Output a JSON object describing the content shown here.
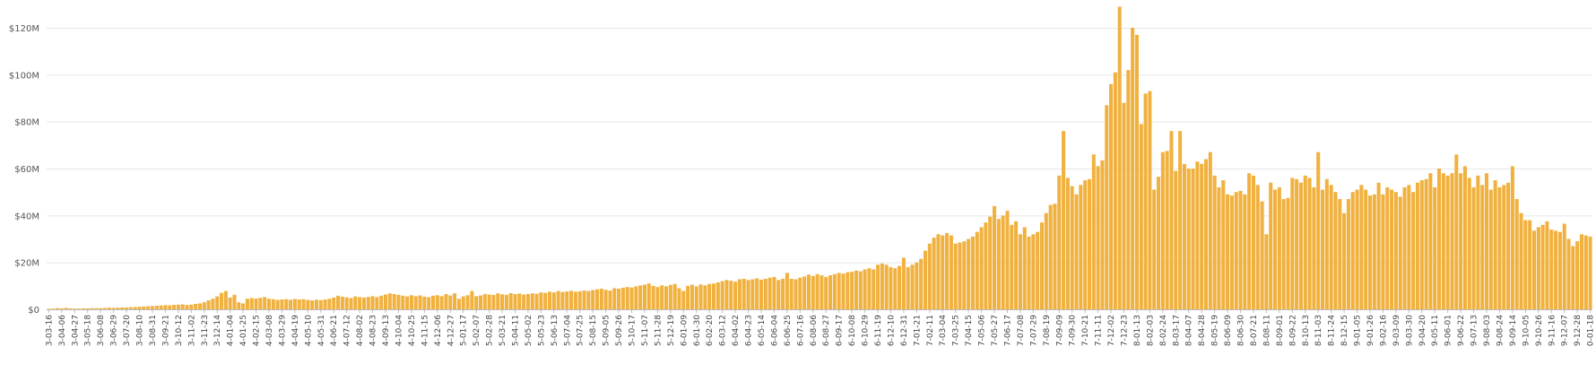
{
  "chart_data": {
    "type": "bar",
    "color": "#f0b13f",
    "grid": true,
    "ylim": [
      0,
      129000000.0
    ],
    "yticks": [
      {
        "value": 0,
        "label": "$0"
      },
      {
        "value": 20000000.0,
        "label": "$20M"
      },
      {
        "value": 40000000.0,
        "label": "$40M"
      },
      {
        "value": 60000000.0,
        "label": "$60M"
      },
      {
        "value": 80000000.0,
        "label": "$80M"
      },
      {
        "value": 100000000.0,
        "label": "$100M"
      },
      {
        "value": 120000000.0,
        "label": "$120M"
      }
    ],
    "categories": [
      "3-03-16",
      null,
      null,
      "3-04-06",
      null,
      null,
      "3-04-27",
      null,
      null,
      "3-05-18",
      null,
      null,
      "3-06-08",
      null,
      null,
      "3-06-29",
      null,
      null,
      "3-07-20",
      null,
      null,
      "3-08-10",
      null,
      null,
      "3-08-31",
      null,
      null,
      "3-09-21",
      null,
      null,
      "3-10-12",
      null,
      null,
      "3-11-02",
      null,
      null,
      "3-11-23",
      null,
      null,
      "3-12-14",
      null,
      null,
      "4-01-04",
      null,
      null,
      "4-01-25",
      null,
      null,
      "4-02-15",
      null,
      null,
      "4-03-08",
      null,
      null,
      "4-03-29",
      null,
      null,
      "4-04-19",
      null,
      null,
      "4-05-10",
      null,
      null,
      "4-05-31",
      null,
      null,
      "4-06-21",
      null,
      null,
      "4-07-12",
      null,
      null,
      "4-08-02",
      null,
      null,
      "4-08-23",
      null,
      null,
      "4-09-13",
      null,
      null,
      "4-10-04",
      null,
      null,
      "4-10-25",
      null,
      null,
      "4-11-15",
      null,
      null,
      "4-12-06",
      null,
      null,
      "4-12-27",
      null,
      null,
      "5-01-17",
      null,
      null,
      "5-02-07",
      null,
      null,
      "5-02-28",
      null,
      null,
      "5-03-21",
      null,
      null,
      "5-04-11",
      null,
      null,
      "5-05-02",
      null,
      null,
      "5-05-23",
      null,
      null,
      "5-06-13",
      null,
      null,
      "5-07-04",
      null,
      null,
      "5-07-25",
      null,
      null,
      "5-08-15",
      null,
      null,
      "5-09-05",
      null,
      null,
      "5-09-26",
      null,
      null,
      "5-10-17",
      null,
      null,
      "5-11-07",
      null,
      null,
      "5-11-28",
      null,
      null,
      "5-12-19",
      null,
      null,
      "6-01-09",
      null,
      null,
      "6-01-30",
      null,
      null,
      "6-02-20",
      null,
      null,
      "6-03-12",
      null,
      null,
      "6-04-02",
      null,
      null,
      "6-04-23",
      null,
      null,
      "6-05-14",
      null,
      null,
      "6-06-04",
      null,
      null,
      "6-06-25",
      null,
      null,
      "6-07-16",
      null,
      null,
      "6-08-06",
      null,
      null,
      "6-08-27",
      null,
      null,
      "6-09-17",
      null,
      null,
      "6-10-08",
      null,
      null,
      "6-10-29",
      null,
      null,
      "6-11-19",
      null,
      null,
      "6-12-10",
      null,
      null,
      "6-12-31",
      null,
      null,
      "7-01-21",
      null,
      null,
      "7-02-11",
      null,
      null,
      "7-03-04",
      null,
      null,
      "7-03-25",
      null,
      null,
      "7-04-15",
      null,
      null,
      "7-05-06",
      null,
      null,
      "7-05-27",
      null,
      null,
      "7-06-17",
      null,
      null,
      "7-07-08",
      null,
      null,
      "7-07-29",
      null,
      null,
      "7-08-19",
      null,
      null,
      "7-09-09",
      null,
      null,
      "7-09-30",
      null,
      null,
      "7-10-21",
      null,
      null,
      "7-11-11",
      null,
      null,
      "7-12-02",
      null,
      null,
      "7-12-23",
      null,
      null,
      "8-01-13",
      null,
      null,
      "8-02-03",
      null,
      null,
      "8-02-24",
      null,
      null,
      "8-03-17",
      null,
      null,
      "8-04-07",
      null,
      null,
      "8-04-28",
      null,
      null,
      "8-05-19",
      null,
      null,
      "8-06-09",
      null,
      null,
      "8-06-30",
      null,
      null,
      "8-07-21",
      null,
      null,
      "8-08-11",
      null,
      null,
      "8-09-01",
      null,
      null,
      "8-09-22",
      null,
      null,
      "8-10-13",
      null,
      null,
      "8-11-03",
      null,
      null,
      "8-11-24",
      null,
      null,
      "8-12-15",
      null,
      null,
      "9-01-05",
      null,
      null,
      "9-01-26",
      null,
      null,
      "9-02-16",
      null,
      null,
      "9-03-09",
      null,
      null,
      "9-03-30",
      null,
      null,
      "9-04-20",
      null,
      null,
      "9-05-11",
      null,
      null,
      "9-06-01",
      null,
      null,
      "9-06-22",
      null,
      null,
      "9-07-13",
      null,
      null,
      "9-08-03",
      null,
      null,
      "9-08-24",
      null,
      null,
      "9-09-14",
      null,
      null,
      "9-10-05",
      null,
      null,
      "9-10-26",
      null,
      null,
      "9-11-16",
      null,
      null,
      "9-12-07",
      null,
      null,
      "9-12-28",
      null,
      null,
      "0-01-18"
    ],
    "values": [
      200000.0,
      300000.0,
      500000.0,
      400000.0,
      600000.0,
      400000.0,
      300000.0,
      300000.0,
      400000.0,
      400000.0,
      500000.0,
      500000.0,
      500000.0,
      600000.0,
      700000.0,
      600000.0,
      700000.0,
      800000.0,
      800000.0,
      900000.0,
      1000000.0,
      1100000.0,
      1200000.0,
      1300000.0,
      1400000.0,
      1500000.0,
      1600000.0,
      1800000.0,
      1700000.0,
      1900000.0,
      2000000.0,
      2100000.0,
      1800000.0,
      2000000.0,
      2300000.0,
      2500000.0,
      3000000.0,
      3800000.0,
      4500000.0,
      5500000.0,
      7000000.0,
      7800000.0,
      5000000.0,
      6200000.0,
      3000000.0,
      2500000.0,
      4500000.0,
      4800000.0,
      4600000.0,
      4900000.0,
      5200000.0,
      4500000.0,
      4300000.0,
      4000000.0,
      4200000.0,
      4300000.0,
      4100000.0,
      4400000.0,
      4200000.0,
      4300000.0,
      4000000.0,
      3800000.0,
      4100000.0,
      3900000.0,
      4200000.0,
      4500000.0,
      5000000.0,
      5800000.0,
      5400000.0,
      5100000.0,
      4800000.0,
      5500000.0,
      5200000.0,
      5000000.0,
      5300000.0,
      5600000.0,
      5200000.0,
      5800000.0,
      6300000.0,
      6800000.0,
      6500000.0,
      6200000.0,
      5800000.0,
      5500000.0,
      6000000.0,
      5600000.0,
      5900000.0,
      5400000.0,
      5200000.0,
      5800000.0,
      6000000.0,
      5600000.0,
      6500000.0,
      5900000.0,
      6800000.0,
      4500000.0,
      5500000.0,
      6000000.0,
      7800000.0,
      5600000.0,
      5900000.0,
      6500000.0,
      6300000.0,
      6100000.0,
      6800000.0,
      6400000.0,
      6200000.0,
      6900000.0,
      6500000.0,
      6700000.0,
      6300000.0,
      6500000.0,
      6800000.0,
      6600000.0,
      7200000.0,
      7000000.0,
      7500000.0,
      7200000.0,
      7800000.0,
      7400000.0,
      7600000.0,
      7900000.0,
      7500000.0,
      7700000.0,
      8000000.0,
      7800000.0,
      8200000.0,
      8500000.0,
      8800000.0,
      8300000.0,
      8000000.0,
      9000000.0,
      8800000.0,
      9200000.0,
      9500000.0,
      9300000.0,
      9800000.0,
      10200000.0,
      10500000.0,
      11000000.0,
      10000000.0,
      9500000.0,
      10200000.0,
      9800000.0,
      10400000.0,
      10800000.0,
      9000000.0,
      7800000.0,
      10000000.0,
      10500000.0,
      9800000.0,
      10600000.0,
      10200000.0,
      10800000.0,
      11000000.0,
      11500000.0,
      12000000.0,
      12500000.0,
      12200000.0,
      11800000.0,
      12800000.0,
      13000000.0,
      12500000.0,
      12800000.0,
      13200000.0,
      12600000.0,
      13000000.0,
      13500000.0,
      13800000.0,
      12500000.0,
      13000000.0,
      15500000.0,
      13000000.0,
      12800000.0,
      13500000.0,
      14000000.0,
      14800000.0,
      14200000.0,
      15000000.0,
      14500000.0,
      13800000.0,
      14500000.0,
      15000000.0,
      15500000.0,
      15200000.0,
      15800000.0,
      16000000.0,
      16500000.0,
      16200000.0,
      17000000.0,
      17500000.0,
      17000000.0,
      19000000.0,
      19500000.0,
      19000000.0,
      18000000.0,
      17500000.0,
      18500000.0,
      22000000.0,
      18000000.0,
      19000000.0,
      20000000.0,
      21500000.0,
      25000000.0,
      28000000.0,
      30500000.0,
      32000000.0,
      31500000.0,
      32500000.0,
      31500000.0,
      28000000.0,
      28500000.0,
      29000000.0,
      30000000.0,
      31000000.0,
      33000000.0,
      35000000.0,
      37000000.0,
      39500000.0,
      44000000.0,
      38500000.0,
      40000000.0,
      42000000.0,
      36000000.0,
      37500000.0,
      32000000.0,
      35000000.0,
      31000000.0,
      32000000.0,
      33000000.0,
      37000000.0,
      41000000.0,
      44500000.0,
      45000000.0,
      57000000.0,
      76000000.0,
      56000000.0,
      52500000.0,
      49000000.0,
      53000000.0,
      55000000.0,
      55500000.0,
      66000000.0,
      61000000.0,
      63500000.0,
      87000000.0,
      96000000.0,
      101000000.0,
      129000000.0,
      88000000.0,
      102000000.0,
      120000000.0,
      117000000.0,
      79000000.0,
      92000000.0,
      93000000.0,
      51000000.0,
      56500000.0,
      67000000.0,
      67500000.0,
      76000000.0,
      59000000.0,
      76000000.0,
      62000000.0,
      60000000.0,
      60000000.0,
      63000000.0,
      62000000.0,
      64000000.0,
      67000000.0,
      57000000.0,
      52000000.0,
      55000000.0,
      49000000.0,
      48500000.0,
      50000000.0,
      50500000.0,
      49000000.0,
      58000000.0,
      57000000.0,
      53000000.0,
      46000000.0,
      32000000.0,
      54000000.0,
      51000000.0,
      52000000.0,
      47000000.0,
      47500000.0,
      56000000.0,
      55500000.0,
      54000000.0,
      57000000.0,
      56000000.0,
      52000000.0,
      67000000.0,
      51000000.0,
      55500000.0,
      53000000.0,
      50000000.0,
      47000000.0,
      41000000.0,
      47000000.0,
      50000000.0,
      51000000.0,
      53000000.0,
      51000000.0,
      48500000.0,
      49000000.0,
      54000000.0,
      49000000.0,
      52000000.0,
      51000000.0,
      50000000.0,
      48000000.0,
      52000000.0,
      53000000.0,
      50000000.0,
      54000000.0,
      55000000.0,
      55500000.0,
      58000000.0,
      52000000.0,
      60000000.0,
      58000000.0,
      57000000.0,
      58000000.0,
      66000000.0,
      58000000.0,
      61000000.0,
      56000000.0,
      52000000.0,
      57000000.0,
      53000000.0,
      58000000.0,
      51000000.0,
      55000000.0,
      52000000.0,
      53000000.0,
      54000000.0,
      61000000.0,
      47000000.0,
      41000000.0,
      38000000.0,
      38000000.0,
      33500000.0,
      35000000.0,
      36000000.0,
      37500000.0,
      34000000.0,
      33500000.0,
      33000000.0,
      36500000.0,
      30000000.0,
      27000000.0,
      29000000.0,
      32000000.0,
      31500000.0,
      31000000.0
    ]
  }
}
